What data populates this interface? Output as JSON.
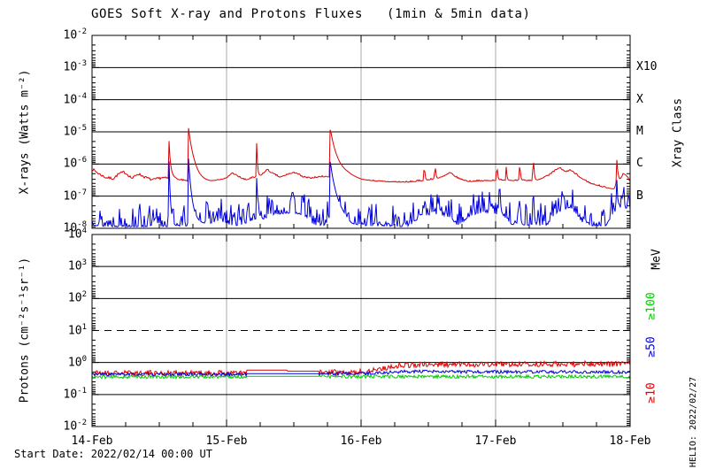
{
  "chart_data": [
    {
      "type": "line",
      "name": "xray-panel",
      "title": "GOES Soft X-ray and Protons Fluxes   (1min & 5min data)",
      "ylabel": "X-rays (Watts m⁻²)",
      "right_axis_title": "Xray Class",
      "ylog_top": -2,
      "ylog_bottom": -8,
      "ytick_exponents": [
        -2,
        -3,
        -4,
        -5,
        -6,
        -7,
        -8
      ],
      "solid_hlines": [
        -3,
        -4,
        -5,
        -6,
        -7
      ],
      "dashed_hlines": [],
      "right_labels": [
        {
          "text": "X10",
          "log": -3,
          "color": "#000000",
          "rotated": false
        },
        {
          "text": "X",
          "log": -4,
          "color": "#000000",
          "rotated": false
        },
        {
          "text": "M",
          "log": -5,
          "color": "#000000",
          "rotated": false
        },
        {
          "text": "C",
          "log": -6,
          "color": "#000000",
          "rotated": false
        },
        {
          "text": "B",
          "log": -7,
          "color": "#000000",
          "rotated": false
        }
      ],
      "series": [
        {
          "name": "xray-long-1min",
          "color": "#dd0000",
          "seed": 7,
          "noise": 0.04,
          "noise_mode": "sym",
          "quiet": [],
          "base": [
            [
              0,
              -6.15
            ],
            [
              0.05,
              -6.3
            ],
            [
              0.1,
              -6.42
            ],
            [
              0.16,
              -6.45
            ],
            [
              0.2,
              -6.3
            ],
            [
              0.24,
              -6.25
            ],
            [
              0.3,
              -6.45
            ],
            [
              0.34,
              -6.3
            ],
            [
              0.4,
              -6.42
            ],
            [
              0.45,
              -6.5
            ],
            [
              0.52,
              -6.42
            ],
            [
              0.56,
              -6.45
            ],
            [
              0.6,
              -6.42
            ],
            [
              0.65,
              -6.5
            ],
            [
              0.73,
              -6.55
            ],
            [
              0.8,
              -6.62
            ],
            [
              0.88,
              -6.58
            ],
            [
              0.95,
              -6.5
            ],
            [
              1.0,
              -6.45
            ],
            [
              1.04,
              -6.28
            ],
            [
              1.08,
              -6.38
            ],
            [
              1.14,
              -6.5
            ],
            [
              1.18,
              -6.45
            ],
            [
              1.26,
              -6.35
            ],
            [
              1.3,
              -6.18
            ],
            [
              1.34,
              -6.3
            ],
            [
              1.4,
              -6.42
            ],
            [
              1.47,
              -6.3
            ],
            [
              1.52,
              -6.28
            ],
            [
              1.56,
              -6.4
            ],
            [
              1.62,
              -6.45
            ],
            [
              1.7,
              -6.4
            ],
            [
              1.9,
              -6.4
            ],
            [
              2.0,
              -6.5
            ],
            [
              2.15,
              -6.55
            ],
            [
              2.35,
              -6.57
            ],
            [
              2.5,
              -6.5
            ],
            [
              2.6,
              -6.42
            ],
            [
              2.66,
              -6.28
            ],
            [
              2.72,
              -6.45
            ],
            [
              2.8,
              -6.55
            ],
            [
              2.95,
              -6.52
            ],
            [
              3.05,
              -6.5
            ],
            [
              3.15,
              -6.52
            ],
            [
              3.3,
              -6.52
            ],
            [
              3.4,
              -6.35
            ],
            [
              3.47,
              -6.12
            ],
            [
              3.52,
              -6.25
            ],
            [
              3.56,
              -6.2
            ],
            [
              3.62,
              -6.4
            ],
            [
              3.7,
              -6.6
            ],
            [
              3.8,
              -6.72
            ],
            [
              3.88,
              -6.78
            ],
            [
              3.92,
              -6.6
            ],
            [
              3.95,
              -6.3
            ],
            [
              3.97,
              -6.35
            ],
            [
              4,
              -6.55
            ]
          ],
          "spikes": [
            [
              0.572,
              -5.25,
              0.012
            ],
            [
              0.717,
              -4.88,
              0.05
            ],
            [
              1.224,
              -5.3,
              0.006
            ],
            [
              1.77,
              -4.87,
              0.06
            ],
            [
              2.47,
              -5.92,
              0.005
            ],
            [
              2.55,
              -5.92,
              0.005
            ],
            [
              3.01,
              -5.9,
              0.005
            ],
            [
              3.08,
              -6.0,
              0.004
            ],
            [
              3.18,
              -5.85,
              0.005
            ],
            [
              3.28,
              -5.62,
              0.006
            ],
            [
              3.9,
              -5.78,
              0.012
            ]
          ]
        },
        {
          "name": "xray-short-1min",
          "color": "#0000dd",
          "seed": 13,
          "noise": 0.18,
          "noise_mode": "up",
          "quiet": [],
          "base": [
            [
              0,
              -7.9
            ],
            [
              0.1,
              -7.95
            ],
            [
              0.55,
              -7.95
            ],
            [
              0.75,
              -7.92
            ],
            [
              0.88,
              -7.85
            ],
            [
              0.95,
              -7.75
            ],
            [
              1.02,
              -7.9
            ],
            [
              1.1,
              -7.92
            ],
            [
              1.17,
              -7.8
            ],
            [
              1.22,
              -7.7
            ],
            [
              1.28,
              -7.72
            ],
            [
              1.33,
              -7.58
            ],
            [
              1.42,
              -7.55
            ],
            [
              1.5,
              -7.52
            ],
            [
              1.58,
              -7.6
            ],
            [
              1.65,
              -7.9
            ],
            [
              1.72,
              -7.92
            ],
            [
              1.8,
              -7.6
            ],
            [
              1.86,
              -7.7
            ],
            [
              1.93,
              -7.92
            ],
            [
              2.35,
              -7.95
            ],
            [
              2.45,
              -7.62
            ],
            [
              2.55,
              -7.55
            ],
            [
              2.65,
              -7.65
            ],
            [
              2.72,
              -7.92
            ],
            [
              2.82,
              -7.6
            ],
            [
              2.92,
              -7.5
            ],
            [
              3.05,
              -7.58
            ],
            [
              3.12,
              -7.88
            ],
            [
              3.38,
              -7.92
            ],
            [
              3.44,
              -7.55
            ],
            [
              3.5,
              -7.45
            ],
            [
              3.55,
              -7.35
            ],
            [
              3.6,
              -7.55
            ],
            [
              3.66,
              -7.92
            ],
            [
              3.82,
              -7.92
            ],
            [
              3.88,
              -7.5
            ],
            [
              3.94,
              -7.35
            ],
            [
              4,
              -7.5
            ]
          ],
          "spikes": [
            [
              0.572,
              -5.85,
              0.012
            ],
            [
              0.717,
              -5.82,
              0.03
            ],
            [
              1.09,
              -6.9,
              0.005
            ],
            [
              1.224,
              -6.4,
              0.01
            ],
            [
              1.77,
              -5.85,
              0.05
            ],
            [
              3.03,
              -6.3,
              0.006
            ],
            [
              3.18,
              -6.75,
              0.005
            ],
            [
              3.28,
              -6.45,
              0.006
            ],
            [
              3.9,
              -6.3,
              0.007
            ],
            [
              3.95,
              -6.6,
              0.006
            ]
          ]
        }
      ]
    },
    {
      "type": "line",
      "name": "proton-panel",
      "ylabel": "Protons (cm⁻²s⁻¹sr⁻¹)",
      "right_axis_title": "MeV",
      "ylog_top": 4,
      "ylog_bottom": -2,
      "ytick_exponents": [
        4,
        3,
        2,
        1,
        0,
        -1,
        -2
      ],
      "solid_hlines": [
        3,
        2,
        0,
        -1
      ],
      "dashed_hlines": [
        1
      ],
      "right_labels": [
        {
          "text": "≥100",
          "log": 1.76,
          "color": "#00cc00",
          "rotated": true
        },
        {
          "text": "≥50",
          "log": 0.49,
          "color": "#0000dd",
          "rotated": true
        },
        {
          "text": "≥10",
          "log": -0.95,
          "color": "#dd0000",
          "rotated": true
        }
      ],
      "series": [
        {
          "name": "protons-ge10mev-5min",
          "color": "#dd0000",
          "seed": 21,
          "noise": 0.09,
          "noise_mode": "sym",
          "quiet": [
            [
              1.151,
              1.688
            ]
          ],
          "base": [
            [
              0,
              -0.33
            ],
            [
              1.15,
              -0.33
            ],
            [
              1.151,
              -0.24
            ],
            [
              1.45,
              -0.24
            ],
            [
              1.451,
              -0.27
            ],
            [
              1.688,
              -0.27
            ],
            [
              1.689,
              -0.31
            ],
            [
              2.0,
              -0.3
            ],
            [
              2.3,
              -0.08
            ],
            [
              2.6,
              -0.06
            ],
            [
              3.5,
              -0.05
            ],
            [
              4,
              -0.04
            ]
          ],
          "spikes": []
        },
        {
          "name": "protons-ge50mev-5min",
          "color": "#0000dd",
          "seed": 33,
          "noise": 0.05,
          "noise_mode": "sym",
          "quiet": [
            [
              1.151,
              1.688
            ]
          ],
          "base": [
            [
              0,
              -0.37
            ],
            [
              1.15,
              -0.37
            ],
            [
              1.151,
              -0.35
            ],
            [
              1.688,
              -0.35
            ],
            [
              1.689,
              -0.36
            ],
            [
              2.05,
              -0.34
            ],
            [
              2.35,
              -0.28
            ],
            [
              2.6,
              -0.29
            ],
            [
              4,
              -0.3
            ]
          ],
          "spikes": []
        },
        {
          "name": "protons-ge100mev-5min",
          "color": "#00cc00",
          "seed": 44,
          "noise": 0.05,
          "noise_mode": "sym",
          "quiet": [
            [
              1.151,
              1.688
            ]
          ],
          "base": [
            [
              0,
              -0.45
            ],
            [
              1.15,
              -0.45
            ],
            [
              1.151,
              -0.43
            ],
            [
              1.688,
              -0.43
            ],
            [
              1.689,
              -0.44
            ],
            [
              2.3,
              -0.44
            ],
            [
              4,
              -0.44
            ]
          ],
          "spikes": []
        }
      ]
    }
  ],
  "xaxis": {
    "tick_labels": [
      "14-Feb",
      "15-Feb",
      "16-Feb",
      "17-Feb",
      "18-Feb"
    ],
    "tick_days": [
      0,
      1,
      2,
      3,
      4
    ],
    "gridline_days": [
      1,
      2,
      3
    ],
    "minor_tick_hours": 6
  },
  "footer": {
    "start_date": "Start Date: 2022/02/14 00:00 UT",
    "generated": "HELIO: 2022/02/27"
  },
  "palette": {
    "frame": "#000000",
    "grid": "#a8a8a8",
    "xray_long": "#dd0000",
    "xray_short": "#0000dd",
    "p10": "#dd0000",
    "p50": "#0000dd",
    "p100": "#00cc00"
  }
}
